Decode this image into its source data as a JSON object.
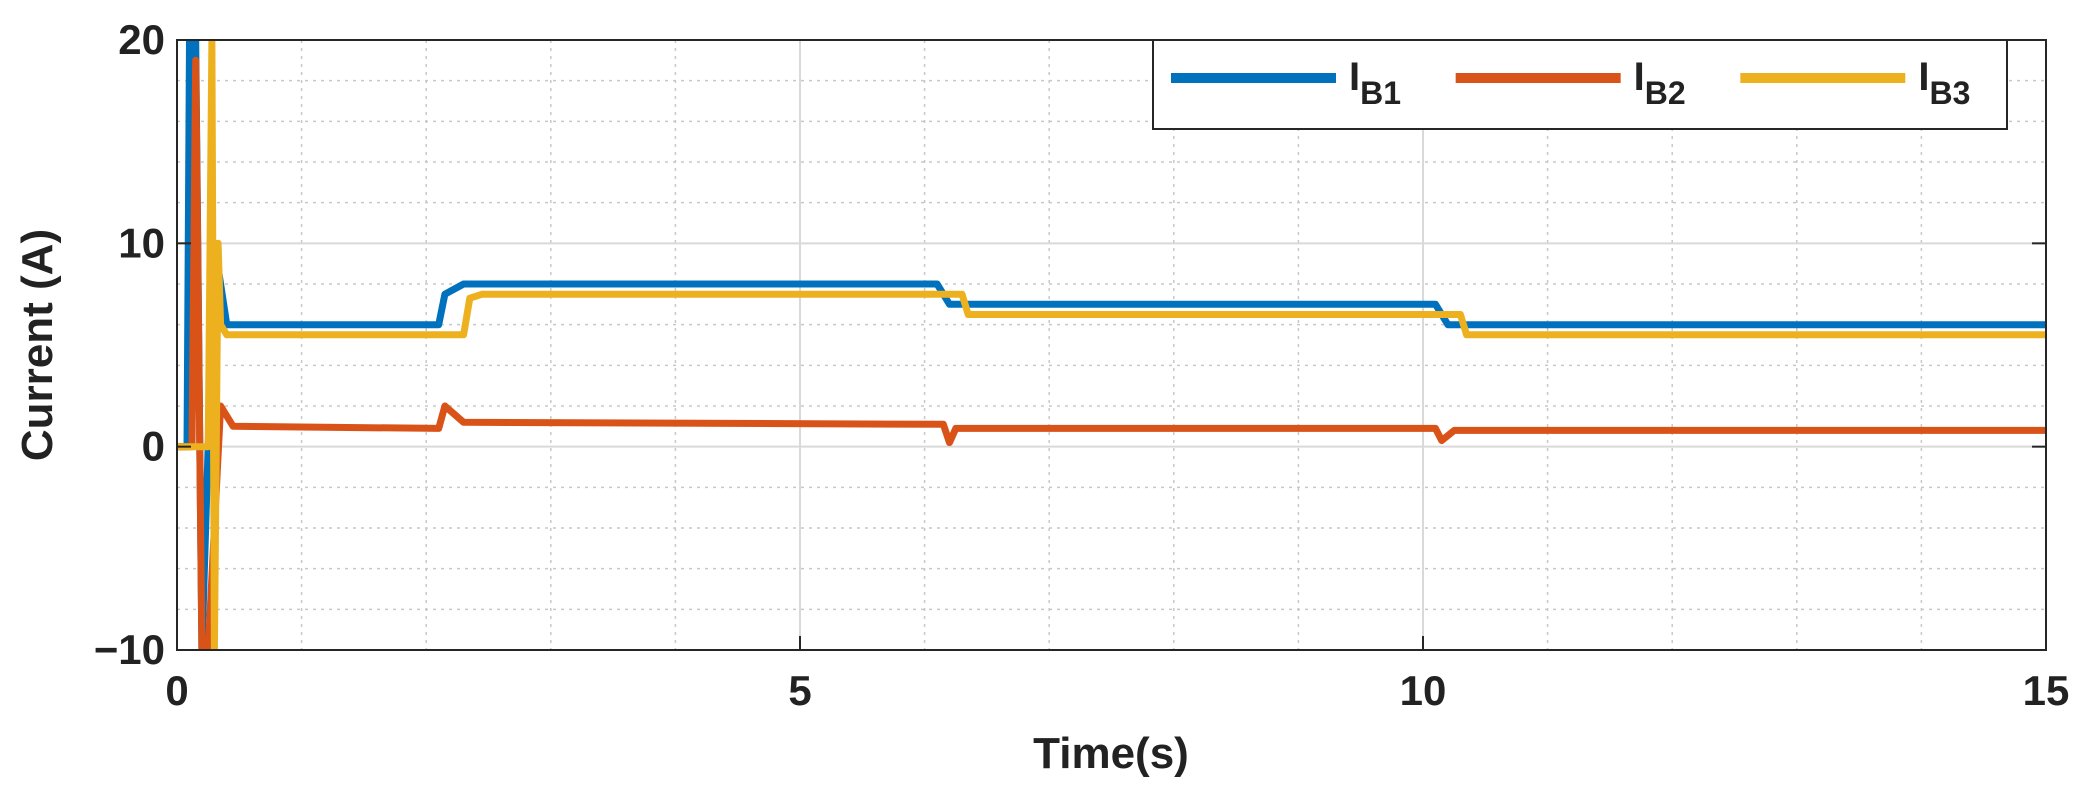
{
  "chart_data": {
    "type": "line",
    "xlabel": "Time(s)",
    "ylabel": "Current (A)",
    "xlim": [
      0,
      15
    ],
    "ylim": [
      -10,
      20
    ],
    "xticks": [
      0,
      5,
      10,
      15
    ],
    "yticks": [
      {
        "value": -10,
        "label": "−10"
      },
      0,
      10,
      20
    ],
    "grid": true,
    "minor_grid": true,
    "legend": "upper right",
    "series": [
      {
        "name": "IB1",
        "color": "#0072bd",
        "x": [
          0,
          0.08,
          0.1,
          0.15,
          0.2,
          0.3,
          0.4,
          2.1,
          2.15,
          2.3,
          6.1,
          6.2,
          6.3,
          10.1,
          10.2,
          15
        ],
        "values": [
          0,
          0,
          20,
          20,
          -10,
          10,
          6,
          6,
          7.5,
          8,
          8,
          7,
          7,
          7,
          6,
          6
        ]
      },
      {
        "name": "IB2",
        "color": "#d95319",
        "x": [
          0,
          0.12,
          0.15,
          0.2,
          0.25,
          0.35,
          0.45,
          2.1,
          2.15,
          2.3,
          6.15,
          6.2,
          6.25,
          10.1,
          10.15,
          10.25,
          15
        ],
        "values": [
          0,
          0,
          19,
          -10,
          -10,
          2,
          1,
          0.9,
          2,
          1.2,
          1.1,
          0.2,
          0.9,
          0.9,
          0.3,
          0.8,
          0.8
        ]
      },
      {
        "name": "IB3",
        "color": "#edb120",
        "x": [
          0,
          0.25,
          0.28,
          0.3,
          0.33,
          0.35,
          0.4,
          2.3,
          2.35,
          2.45,
          6.3,
          6.35,
          6.45,
          10.3,
          10.35,
          15
        ],
        "values": [
          0,
          0,
          20,
          -10,
          10,
          6,
          5.5,
          5.5,
          7.3,
          7.5,
          7.5,
          6.5,
          6.5,
          6.5,
          5.5,
          5.5
        ]
      }
    ]
  }
}
